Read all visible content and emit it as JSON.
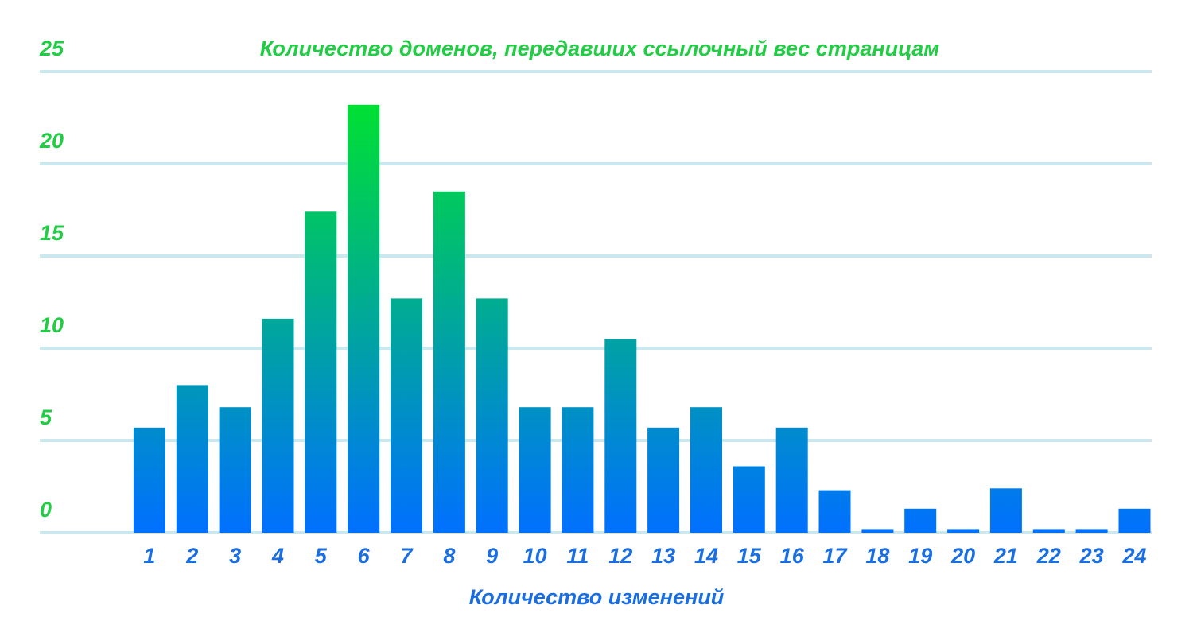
{
  "chart_data": {
    "type": "bar",
    "title": "Количество доменов, передавших ссылочный вес страницам",
    "xlabel": "Количество изменений",
    "ylabel": "",
    "ylim": [
      0,
      25
    ],
    "yticks": [
      "0",
      "5",
      "10",
      "15",
      "20",
      "25"
    ],
    "grid": true,
    "categories": [
      "1",
      "2",
      "3",
      "4",
      "5",
      "6",
      "7",
      "8",
      "9",
      "10",
      "11",
      "12",
      "13",
      "14",
      "15",
      "16",
      "17",
      "18",
      "19",
      "20",
      "21",
      "22",
      "23",
      "24"
    ],
    "values": [
      5.7,
      8,
      6.8,
      11.6,
      17.4,
      23.2,
      12.7,
      18.5,
      12.7,
      6.8,
      6.8,
      10.5,
      5.7,
      6.8,
      3.6,
      5.7,
      2.3,
      0.2,
      1.3,
      0.2,
      2.4,
      0.2,
      0.2,
      1.3
    ],
    "colors": {
      "gradient_top": "#00e033",
      "gradient_bottom": "#0070ff",
      "grid": "#cce8ef",
      "ytick": "#22cc44",
      "xtick": "#1a6ee0",
      "title": "#22cc44",
      "xlabel": "#1a6ee0"
    }
  }
}
